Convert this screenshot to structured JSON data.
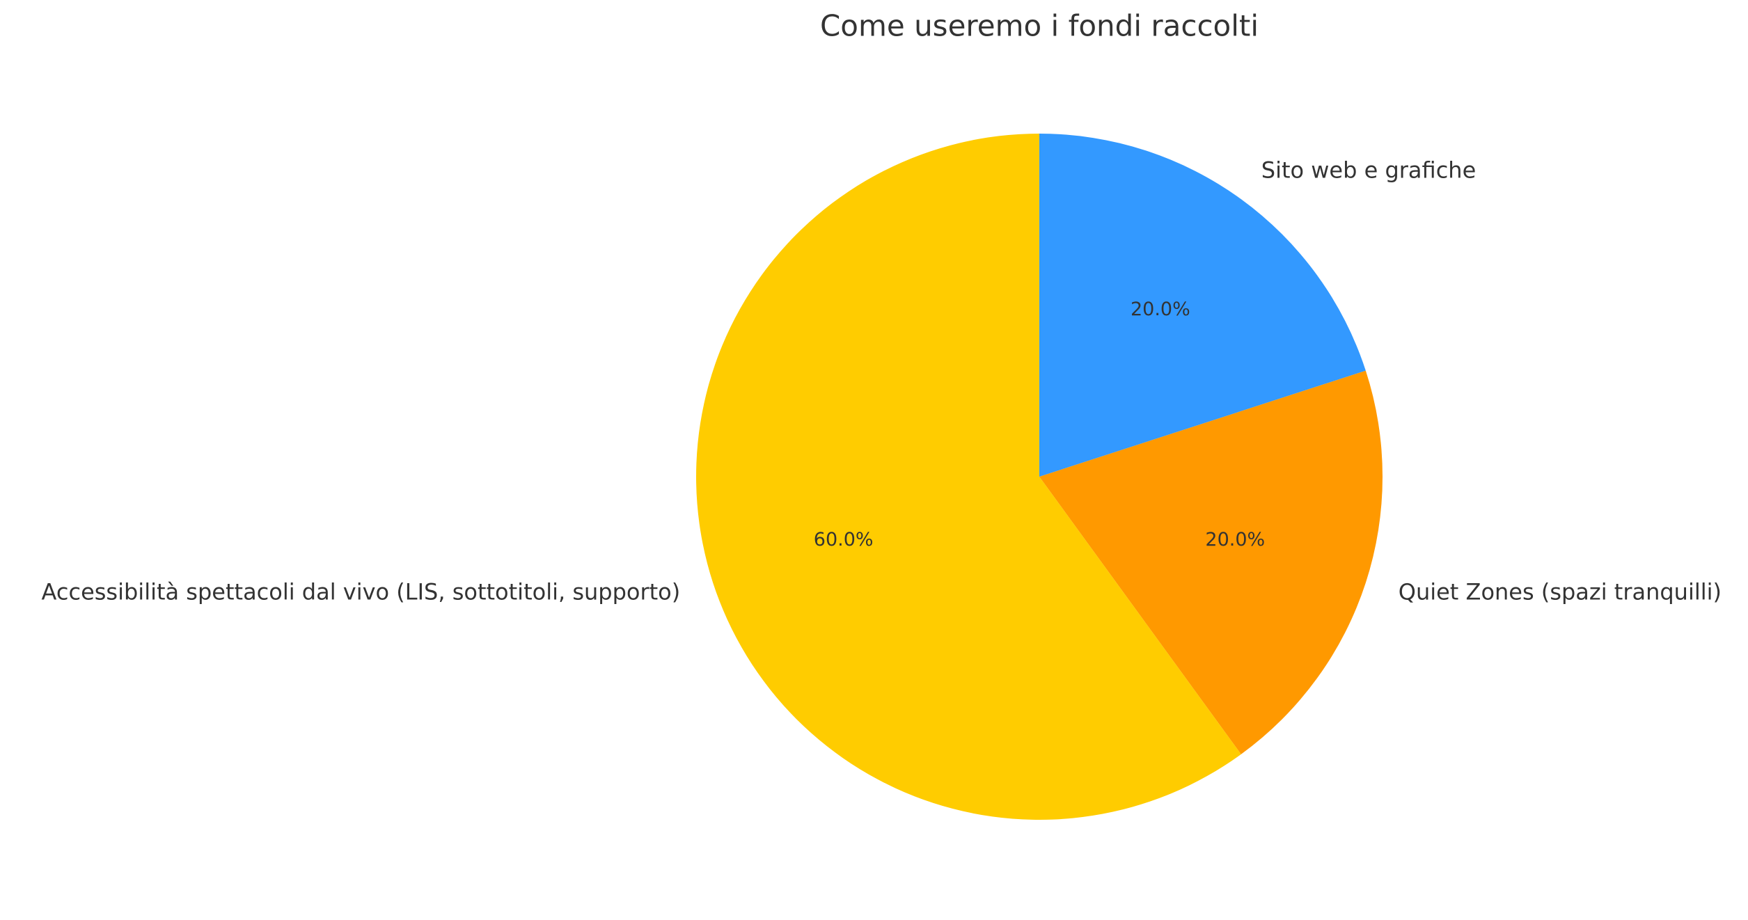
{
  "chart_data": {
    "type": "pie",
    "title": "Come useremo i fondi raccolti",
    "categories": [
      "Sito web e grafiche",
      "Quiet Zones (spazi tranquilli)",
      "Accessibilità spettacoli dal vivo (LIS, sottotitoli, supporto)"
    ],
    "values": [
      20,
      20,
      60
    ],
    "value_labels": [
      "20.0%",
      "20.0%",
      "60.0%"
    ],
    "colors": [
      "#3399ff",
      "#ff9900",
      "#ffcc00"
    ]
  }
}
